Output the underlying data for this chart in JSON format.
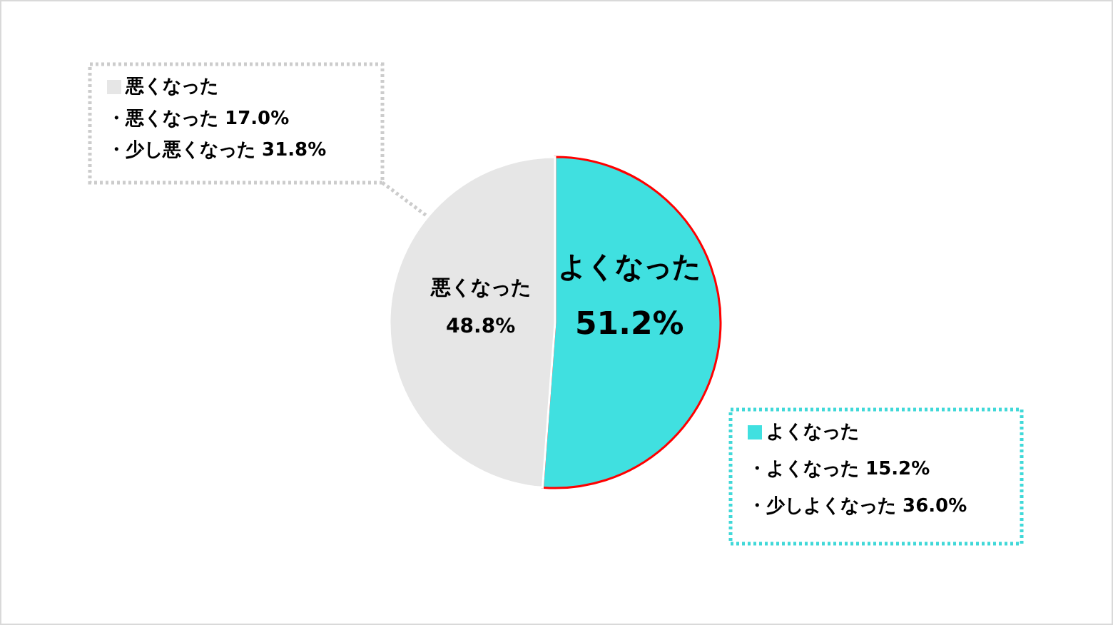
{
  "chart_data": {
    "type": "pie",
    "categories": [
      "よくなった",
      "悪くなった"
    ],
    "values": [
      51.2,
      48.8
    ],
    "colors": [
      "#40e0e0",
      "#e6e6e6"
    ],
    "value_labels": [
      "51.2%",
      "48.8%"
    ],
    "annotations": [
      "悪くなった",
      "・悪くなった 17.0%",
      "・少し悪くなった 31.8%",
      "よくなった",
      "・よくなった 15.2%",
      "・少しよくなった 36.0%"
    ]
  }
}
